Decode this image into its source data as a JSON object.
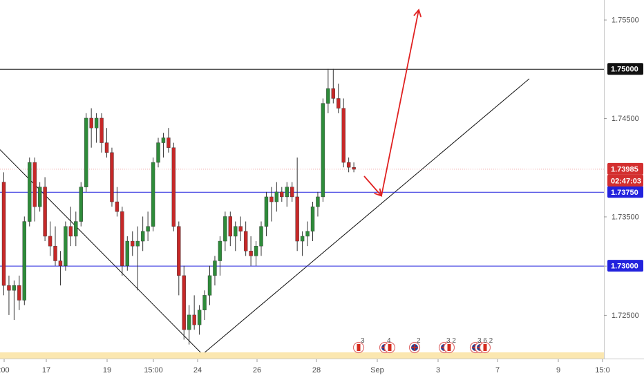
{
  "chart_data": {
    "type": "candlestick",
    "ylim": [
      1.7205,
      1.757
    ],
    "xlim": [
      0,
      874
    ],
    "y_ticks": [
      "1.72500",
      "1.73000",
      "1.73500",
      "1.74500",
      "1.75500"
    ],
    "x_ticks": [
      ":00",
      "17",
      "19",
      "15:00",
      "24",
      "26",
      "28",
      "Sep",
      "3",
      "7",
      "9",
      "15:0"
    ],
    "grid": false,
    "colors": {
      "up": "#2e8b3a",
      "down": "#c62828",
      "wick": "#333333"
    },
    "levels": [
      {
        "price": 1.75,
        "label": "1.75000",
        "color": "#111111"
      },
      {
        "price": 1.7375,
        "label": "1.73750",
        "color": "#2222dd"
      },
      {
        "price": 1.73,
        "label": "1.73000",
        "color": "#2222dd"
      }
    ],
    "last_price": {
      "label": "1.73985",
      "price": 1.73985,
      "countdown": "02:47:03",
      "color": "#d32f2f"
    },
    "candles": [
      [
        1.7385,
        1.7395,
        1.727,
        1.728
      ],
      [
        1.728,
        1.729,
        1.725,
        1.7275
      ],
      [
        1.7275,
        1.7285,
        1.7245,
        1.728
      ],
      [
        1.728,
        1.729,
        1.7255,
        1.7265
      ],
      [
        1.7265,
        1.735,
        1.726,
        1.7345
      ],
      [
        1.7345,
        1.741,
        1.734,
        1.7405
      ],
      [
        1.7405,
        1.741,
        1.7345,
        1.736
      ],
      [
        1.736,
        1.7385,
        1.7355,
        1.738
      ],
      [
        1.738,
        1.739,
        1.7325,
        1.733
      ],
      [
        1.733,
        1.7345,
        1.731,
        1.732
      ],
      [
        1.732,
        1.734,
        1.73,
        1.7305
      ],
      [
        1.7305,
        1.7315,
        1.728,
        1.73
      ],
      [
        1.73,
        1.7345,
        1.7295,
        1.734
      ],
      [
        1.734,
        1.736,
        1.732,
        1.733
      ],
      [
        1.733,
        1.7355,
        1.732,
        1.7345
      ],
      [
        1.7345,
        1.7385,
        1.734,
        1.738
      ],
      [
        1.738,
        1.7455,
        1.7375,
        1.745
      ],
      [
        1.745,
        1.746,
        1.742,
        1.744
      ],
      [
        1.744,
        1.7455,
        1.7425,
        1.745
      ],
      [
        1.745,
        1.7455,
        1.7415,
        1.7425
      ],
      [
        1.7425,
        1.744,
        1.741,
        1.7415
      ],
      [
        1.7415,
        1.742,
        1.736,
        1.7365
      ],
      [
        1.7365,
        1.738,
        1.735,
        1.7355
      ],
      [
        1.7355,
        1.736,
        1.729,
        1.73
      ],
      [
        1.73,
        1.733,
        1.7295,
        1.7325
      ],
      [
        1.7325,
        1.7335,
        1.731,
        1.732
      ],
      [
        1.732,
        1.734,
        1.7275,
        1.7325
      ],
      [
        1.7325,
        1.735,
        1.7315,
        1.7335
      ],
      [
        1.7335,
        1.7355,
        1.7325,
        1.734
      ],
      [
        1.734,
        1.741,
        1.7335,
        1.7405
      ],
      [
        1.7405,
        1.743,
        1.74,
        1.7425
      ],
      [
        1.7425,
        1.7435,
        1.741,
        1.743
      ],
      [
        1.743,
        1.744,
        1.7415,
        1.742
      ],
      [
        1.742,
        1.7425,
        1.7335,
        1.734
      ],
      [
        1.734,
        1.7345,
        1.727,
        1.729
      ],
      [
        1.729,
        1.73,
        1.7225,
        1.7235
      ],
      [
        1.7235,
        1.726,
        1.722,
        1.725
      ],
      [
        1.725,
        1.727,
        1.7235,
        1.724
      ],
      [
        1.724,
        1.726,
        1.723,
        1.7255
      ],
      [
        1.7255,
        1.7275,
        1.7245,
        1.727
      ],
      [
        1.727,
        1.73,
        1.726,
        1.729
      ],
      [
        1.729,
        1.731,
        1.728,
        1.7305
      ],
      [
        1.7305,
        1.733,
        1.729,
        1.7325
      ],
      [
        1.7325,
        1.7355,
        1.7315,
        1.735
      ],
      [
        1.735,
        1.7355,
        1.732,
        1.733
      ],
      [
        1.733,
        1.7345,
        1.7315,
        1.734
      ],
      [
        1.734,
        1.735,
        1.7325,
        1.7335
      ],
      [
        1.7335,
        1.7345,
        1.731,
        1.7315
      ],
      [
        1.7315,
        1.733,
        1.73,
        1.731
      ],
      [
        1.731,
        1.7325,
        1.73,
        1.732
      ],
      [
        1.732,
        1.7345,
        1.731,
        1.734
      ],
      [
        1.734,
        1.7375,
        1.733,
        1.737
      ],
      [
        1.737,
        1.738,
        1.7345,
        1.7365
      ],
      [
        1.7365,
        1.7385,
        1.7355,
        1.7375
      ],
      [
        1.7375,
        1.738,
        1.7365,
        1.737
      ],
      [
        1.737,
        1.7385,
        1.736,
        1.738
      ],
      [
        1.738,
        1.7385,
        1.7365,
        1.737
      ],
      [
        1.737,
        1.741,
        1.7315,
        1.7325
      ],
      [
        1.7325,
        1.7335,
        1.731,
        1.733
      ],
      [
        1.733,
        1.7345,
        1.732,
        1.7335
      ],
      [
        1.7335,
        1.7365,
        1.7325,
        1.736
      ],
      [
        1.736,
        1.7375,
        1.735,
        1.737
      ],
      [
        1.737,
        1.747,
        1.7365,
        1.7465
      ],
      [
        1.7465,
        1.75,
        1.7455,
        1.748
      ],
      [
        1.748,
        1.75,
        1.7465,
        1.747
      ],
      [
        1.747,
        1.7485,
        1.7455,
        1.746
      ],
      [
        1.746,
        1.747,
        1.74,
        1.7405
      ],
      [
        1.7405,
        1.741,
        1.7395,
        1.74
      ],
      [
        1.74,
        1.7405,
        1.7395,
        1.7398
      ]
    ],
    "trendlines": [
      {
        "from": [
          0,
          1.7418
        ],
        "to": [
          293,
          1.721
        ],
        "color": "#111111"
      },
      {
        "from": [
          293,
          1.721
        ],
        "to": [
          766,
          1.749
        ],
        "color": "#111111"
      }
    ],
    "arrows": [
      {
        "points": [
          [
            527,
            1.7391
          ],
          [
            552,
            1.7371
          ]
        ],
        "color": "#e02020"
      },
      {
        "points": [
          [
            552,
            1.7371
          ],
          [
            606,
            1.756
          ]
        ],
        "color": "#e02020"
      }
    ],
    "events": [
      {
        "count": "3",
        "flags": [
          "ca"
        ]
      },
      {
        "count": "4",
        "flags": [
          "uk",
          "ca"
        ]
      },
      {
        "count": "2",
        "flags": [
          "uk"
        ]
      },
      {
        "count": "3 2",
        "flags": [
          "uk",
          "ca"
        ]
      },
      {
        "count": "3 6 2",
        "flags": [
          "uk",
          "uk",
          "ca"
        ]
      }
    ]
  }
}
